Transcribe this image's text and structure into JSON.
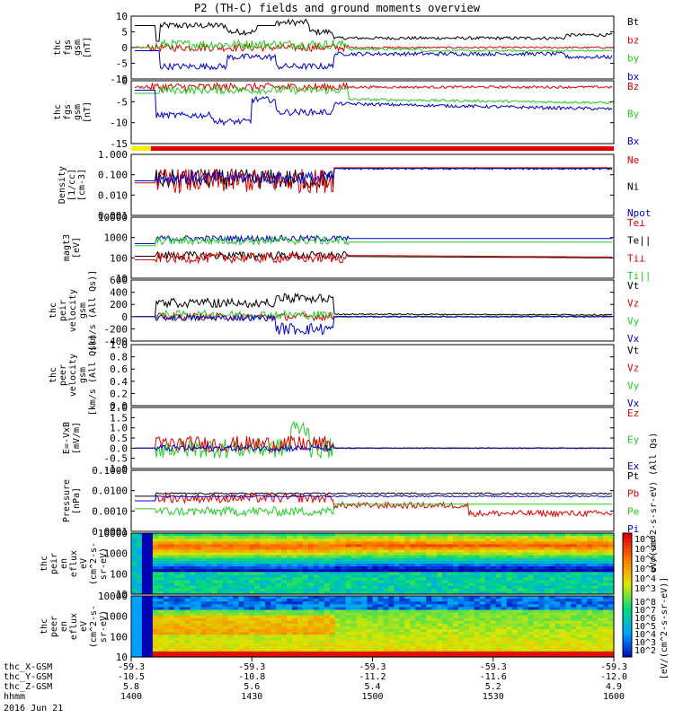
{
  "title": "P2 (TH-C) fields and ground moments overview",
  "colors": {
    "black": "#000000",
    "red": "#e00000",
    "green": "#22cc22",
    "blue": "#0000cc",
    "yellow": "#ffee00"
  },
  "chart_data": [
    {
      "type": "line",
      "ylabel": [
        "thc",
        "fgs",
        "gsm",
        "[nT]"
      ],
      "ylim": [
        -10,
        10
      ],
      "ticks": [
        "10",
        "5",
        "0",
        "-5",
        "-10"
      ],
      "legend": [
        {
          "t": "Bt",
          "c": "black"
        },
        {
          "t": "bz",
          "c": "red"
        },
        {
          "t": "by",
          "c": "green"
        },
        {
          "t": "bx",
          "c": "blue"
        }
      ]
    },
    {
      "type": "line",
      "ylabel": [
        "thc",
        "fgs",
        "gsm",
        "[nT]"
      ],
      "ylim": [
        -18,
        2
      ],
      "ticks": [
        "0",
        "-5",
        "-10",
        "-15"
      ],
      "legend": [
        {
          "t": "Bz",
          "c": "red"
        },
        {
          "t": "By",
          "c": "green"
        },
        {
          "t": "Bx",
          "c": "blue"
        }
      ]
    },
    {
      "type": "line",
      "ylabel": [
        "Density",
        "[1/cc]",
        "[cm-3]"
      ],
      "ylim": [
        0.001,
        1
      ],
      "ticks": [
        "1.000",
        "0.100",
        "0.010",
        "0.001"
      ],
      "legend": [
        {
          "t": "Ne",
          "c": "red"
        },
        {
          "t": "Ni",
          "c": "black"
        },
        {
          "t": "Npot",
          "c": "blue"
        }
      ]
    },
    {
      "type": "line",
      "ylabel": [
        "magt3",
        "[eV]"
      ],
      "ylim": [
        10,
        10000
      ],
      "ticks": [
        "10000",
        "1000",
        "100",
        "10"
      ],
      "legend": [
        {
          "t": "Te⊥",
          "c": "red"
        },
        {
          "t": "Te||",
          "c": "black"
        },
        {
          "t": "Ti⊥",
          "c": "red"
        },
        {
          "t": "Ti||",
          "c": "green"
        }
      ]
    },
    {
      "type": "line",
      "ylabel": [
        "thc",
        "peir",
        "velocity",
        "gsm",
        "[km/s (All Qs)]"
      ],
      "ylim": [
        -400,
        600
      ],
      "ticks": [
        "600",
        "400",
        "200",
        "0",
        "-200",
        "-400"
      ],
      "legend": [
        {
          "t": "Vt",
          "c": "black"
        },
        {
          "t": "Vz",
          "c": "red"
        },
        {
          "t": "Vy",
          "c": "green"
        },
        {
          "t": "Vx",
          "c": "blue"
        }
      ]
    },
    {
      "type": "line",
      "ylabel": [
        "thc",
        "peer",
        "velocity",
        "gsm",
        "[km/s (All Qs)]"
      ],
      "ylim": [
        0,
        1
      ],
      "ticks": [
        "1.0",
        "0.8",
        "0.6",
        "0.4",
        "0.2",
        "0.0"
      ],
      "legend": [
        {
          "t": "Vt",
          "c": "black"
        },
        {
          "t": "Vz",
          "c": "red"
        },
        {
          "t": "Vy",
          "c": "green"
        },
        {
          "t": "Vx",
          "c": "blue"
        }
      ]
    },
    {
      "type": "line",
      "ylabel": [
        "E=-VxB",
        "[mV/m]"
      ],
      "ylim": [
        -1,
        2
      ],
      "ticks": [
        "2.0",
        "1.5",
        "1.0",
        "0.5",
        "0.0",
        "-0.5",
        "-1.0"
      ],
      "legend": [
        {
          "t": "Ez",
          "c": "red"
        },
        {
          "t": "Ey",
          "c": "green"
        },
        {
          "t": "Ex",
          "c": "blue"
        }
      ]
    },
    {
      "type": "line",
      "ylabel": [
        "Pressure",
        "[nPa]"
      ],
      "ylim": [
        0.0001,
        1
      ],
      "ticks": [
        "0.1000",
        "0.0100",
        "0.0010",
        "0.0001"
      ],
      "legend": [
        {
          "t": "Pt",
          "c": "black"
        },
        {
          "t": "Pb",
          "c": "red"
        },
        {
          "t": "Pe",
          "c": "green"
        },
        {
          "t": "Pi",
          "c": "blue"
        }
      ]
    },
    {
      "type": "heatmap",
      "ylabel": [
        "thc",
        "peir",
        "en",
        "eflux",
        "eV",
        "(cm^2-s-",
        "sr-eV)"
      ],
      "ticks": [
        "10000",
        "1000",
        "100",
        "10"
      ]
    },
    {
      "type": "heatmap",
      "ylabel": [
        "thc",
        "peer",
        "en",
        "eflux",
        "eV",
        "(cm^2-s-",
        "sr-eV)"
      ],
      "ticks": [
        "10000",
        "1000",
        "100",
        "10"
      ]
    }
  ],
  "xaxis": {
    "ticks": [
      {
        "hhmm": "1400",
        "x": "-59.3",
        "y": "-10.5",
        "z": "5.8"
      },
      {
        "hhmm": "1430",
        "x": "-59.3",
        "y": "-10.8",
        "z": "5.6"
      },
      {
        "hhmm": "1500",
        "x": "-59.3",
        "y": "-11.2",
        "z": "5.4"
      },
      {
        "hhmm": "1530",
        "x": "-59.3",
        "y": "-11.6",
        "z": "5.2"
      },
      {
        "hhmm": "1600",
        "x": "-59.3",
        "y": "-12.0",
        "z": "4.9"
      }
    ],
    "row_labels": [
      "thc_X-GSM",
      "thc_Y-GSM",
      "thc_Z-GSM",
      "hhmm"
    ],
    "date": "2016 Jun 21"
  },
  "colorbar": {
    "label": "[eV/(cm^2-s-sr-eV)]",
    "ticks_top": [
      "10^8",
      "10^7",
      "10^6",
      "10^5",
      "10^4",
      "10^3"
    ],
    "ticks_bot": [
      "10^8",
      "10^7",
      "10^6",
      "10^5",
      "10^4",
      "10^3",
      "10^2"
    ],
    "side_label": "eV/(cm^2-s-sr-eV) (All Qs)"
  }
}
